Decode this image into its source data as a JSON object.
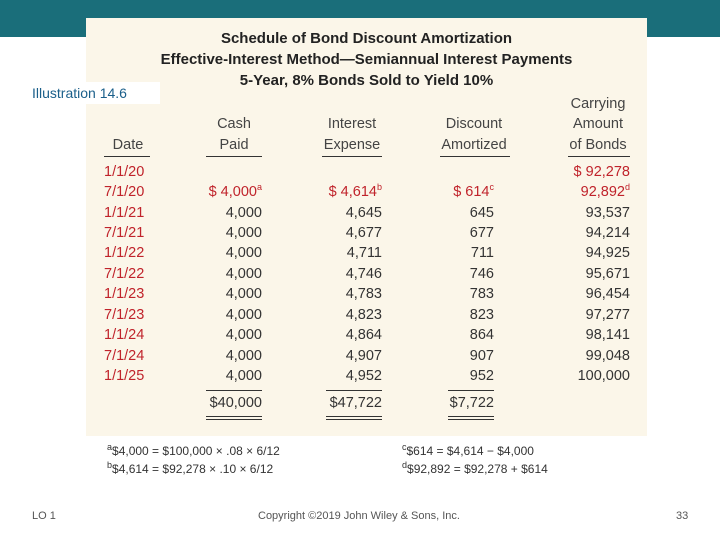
{
  "slide": {
    "illustration": "Illustration 14.6",
    "lo": "LO 1",
    "copyright": "Copyright ©2019 John Wiley & Sons, Inc.",
    "page": "33"
  },
  "table": {
    "title1": "Schedule of Bond Discount Amortization",
    "title2": "Effective-Interest Method—Semiannual Interest Payments",
    "title3": "5-Year, 8% Bonds Sold to Yield 10%",
    "headers": {
      "date": "Date",
      "cash_1": "Cash",
      "cash_2": "Paid",
      "interest_1": "Interest",
      "interest_2": "Expense",
      "discount_1": "Discount",
      "discount_2": "Amortized",
      "carrying_1": "Carrying",
      "carrying_2": "Amount",
      "carrying_3": "of Bonds"
    },
    "rows": [
      {
        "date": "1/1/20",
        "cash": "",
        "interest": "",
        "discount": "",
        "carrying": "$  92,278"
      },
      {
        "date": "7/1/20",
        "cash": "$  4,000",
        "interest": "$  4,614",
        "discount": "$   614",
        "carrying": "92,892"
      },
      {
        "date": "1/1/21",
        "cash": "4,000",
        "interest": "4,645",
        "discount": "645",
        "carrying": "93,537"
      },
      {
        "date": "7/1/21",
        "cash": "4,000",
        "interest": "4,677",
        "discount": "677",
        "carrying": "94,214"
      },
      {
        "date": "1/1/22",
        "cash": "4,000",
        "interest": "4,711",
        "discount": "711",
        "carrying": "94,925"
      },
      {
        "date": "7/1/22",
        "cash": "4,000",
        "interest": "4,746",
        "discount": "746",
        "carrying": "95,671"
      },
      {
        "date": "1/1/23",
        "cash": "4,000",
        "interest": "4,783",
        "discount": "783",
        "carrying": "96,454"
      },
      {
        "date": "7/1/23",
        "cash": "4,000",
        "interest": "4,823",
        "discount": "823",
        "carrying": "97,277"
      },
      {
        "date": "1/1/24",
        "cash": "4,000",
        "interest": "4,864",
        "discount": "864",
        "carrying": "98,141"
      },
      {
        "date": "7/1/24",
        "cash": "4,000",
        "interest": "4,907",
        "discount": "907",
        "carrying": "99,048"
      },
      {
        "date": "1/1/25",
        "cash": "4,000",
        "interest": "4,952",
        "discount": "952",
        "carrying": "100,000"
      }
    ],
    "totals": {
      "cash": "$40,000",
      "interest": "$47,722",
      "discount": "$7,722"
    },
    "superscripts": {
      "a": "a",
      "b": "b",
      "c": "c",
      "d": "d"
    },
    "footnotes": {
      "a": "$4,000 = $100,000 × .08 × 6/12",
      "b": "$4,614 = $92,278 × .10 × 6/12",
      "c": "$614 = $4,614 − $4,000",
      "d": "$92,892 = $92,278 + $614"
    },
    "colors": {
      "topbar": "#1a6e7a",
      "panel": "#fbf6e9",
      "highlight": "#c0232b",
      "illustration_text": "#1a5f8a"
    }
  }
}
